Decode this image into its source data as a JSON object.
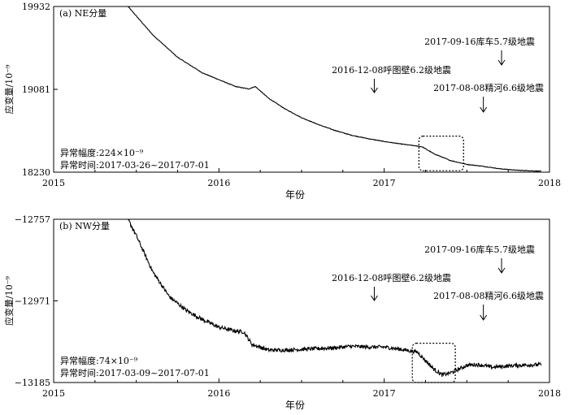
{
  "chart_data": [
    {
      "type": "line",
      "panel_label": "(a) NE分量",
      "xlabel": "年份",
      "ylabel": "应变量/10⁻⁹",
      "xlim": [
        2015,
        2018
      ],
      "ylim": [
        18230,
        19932
      ],
      "x_ticks": [
        "2015",
        "2016",
        "2017",
        "2018"
      ],
      "y_ticks": [
        "19932",
        "19081",
        "18230"
      ],
      "y_tick_values": [
        19932,
        19081,
        18230
      ],
      "series": [
        {
          "x": [
            2015.45,
            2015.6,
            2015.75,
            2015.9,
            2016.0,
            2016.1,
            2016.18,
            2016.22,
            2016.3,
            2016.4,
            2016.5,
            2016.6,
            2016.7,
            2016.8,
            2016.9,
            2017.0,
            2017.1,
            2017.2,
            2017.23,
            2017.3,
            2017.4,
            2017.5,
            2017.6,
            2017.7,
            2017.8,
            2017.95
          ],
          "y": [
            19932,
            19640,
            19410,
            19250,
            19180,
            19110,
            19085,
            19110,
            18990,
            18880,
            18790,
            18720,
            18660,
            18610,
            18575,
            18545,
            18520,
            18498,
            18490,
            18420,
            18350,
            18310,
            18290,
            18265,
            18250,
            18240
          ],
          "noise": 3
        }
      ],
      "anomaly": {
        "x_start": 2017.21,
        "x_end": 2017.48,
        "y_low": 18245,
        "y_high": 18600
      },
      "annotations": [
        {
          "text": "2017-09-16库车5.7级地震",
          "x": 2017.71
        },
        {
          "text": "2016-12-08呼图壁6.2级地震",
          "x": 2016.94
        },
        {
          "text": "2017-08-08精河6.6级地震",
          "x": 2017.6
        }
      ],
      "info": [
        "异常幅度:224×10⁻⁹",
        "异常时间:2017-03-26~2017-07-01"
      ]
    },
    {
      "type": "line",
      "panel_label": "(b) NW分量",
      "xlabel": "年份",
      "ylabel": "应变量/10⁻⁹",
      "xlim": [
        2015,
        2018
      ],
      "ylim": [
        -13185,
        -12757
      ],
      "x_ticks": [
        "2015",
        "2016",
        "2017",
        "2018"
      ],
      "y_ticks": [
        "−12757",
        "−12971",
        "−13185"
      ],
      "y_tick_values": [
        -12757,
        -12971,
        -13185
      ],
      "series": [
        {
          "x": [
            2015.45,
            2015.5,
            2015.6,
            2015.7,
            2015.8,
            2015.9,
            2016.0,
            2016.1,
            2016.15,
            2016.2,
            2016.3,
            2016.4,
            2016.5,
            2016.6,
            2016.7,
            2016.8,
            2016.9,
            2017.0,
            2017.1,
            2017.2,
            2017.3,
            2017.35,
            2017.4,
            2017.5,
            2017.55,
            2017.6,
            2017.65,
            2017.8,
            2017.95
          ],
          "y": [
            -12757,
            -12800,
            -12895,
            -12960,
            -12995,
            -13020,
            -13040,
            -13050,
            -13052,
            -13085,
            -13100,
            -13100,
            -13098,
            -13096,
            -13094,
            -13090,
            -13092,
            -13092,
            -13098,
            -13105,
            -13150,
            -13165,
            -13160,
            -13140,
            -13138,
            -13140,
            -13145,
            -13140,
            -13138
          ],
          "noise": 5
        }
      ],
      "anomaly": {
        "x_start": 2017.17,
        "x_end": 2017.43,
        "y_low": -13185,
        "y_high": -13082
      },
      "annotations": [
        {
          "text": "2017-09-16库车5.7级地震",
          "x": 2017.71
        },
        {
          "text": "2016-12-08呼图壁6.2级地震",
          "x": 2016.94
        },
        {
          "text": "2017-08-08精河6.6级地震",
          "x": 2017.6
        }
      ],
      "info": [
        "异常幅度:74×10⁻⁹",
        "异常时间:2017-03-09~2017-07-01"
      ]
    }
  ]
}
